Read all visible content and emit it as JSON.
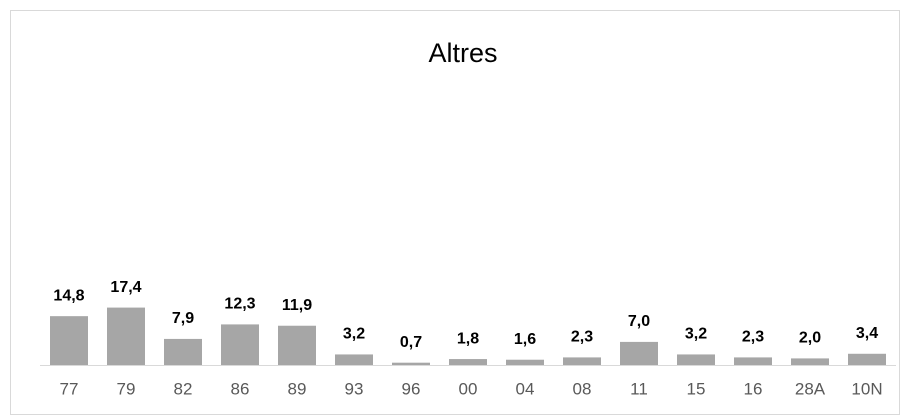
{
  "chart_data": {
    "type": "bar",
    "title": "Altres",
    "categories": [
      "77",
      "79",
      "82",
      "86",
      "89",
      "93",
      "96",
      "00",
      "04",
      "08",
      "11",
      "15",
      "16",
      "28A",
      "10N"
    ],
    "values": [
      14.8,
      17.4,
      7.9,
      12.3,
      11.9,
      3.2,
      0.7,
      1.8,
      1.6,
      2.3,
      7.0,
      3.2,
      2.3,
      2.0,
      3.4
    ],
    "value_labels": [
      "14,8",
      "17,4",
      "7,9",
      "12,3",
      "11,9",
      "3,2",
      "0,7",
      "1,8",
      "1,6",
      "2,3",
      "7,0",
      "3,2",
      "2,3",
      "2,0",
      "3,4"
    ],
    "color": "#a6a6a6"
  }
}
